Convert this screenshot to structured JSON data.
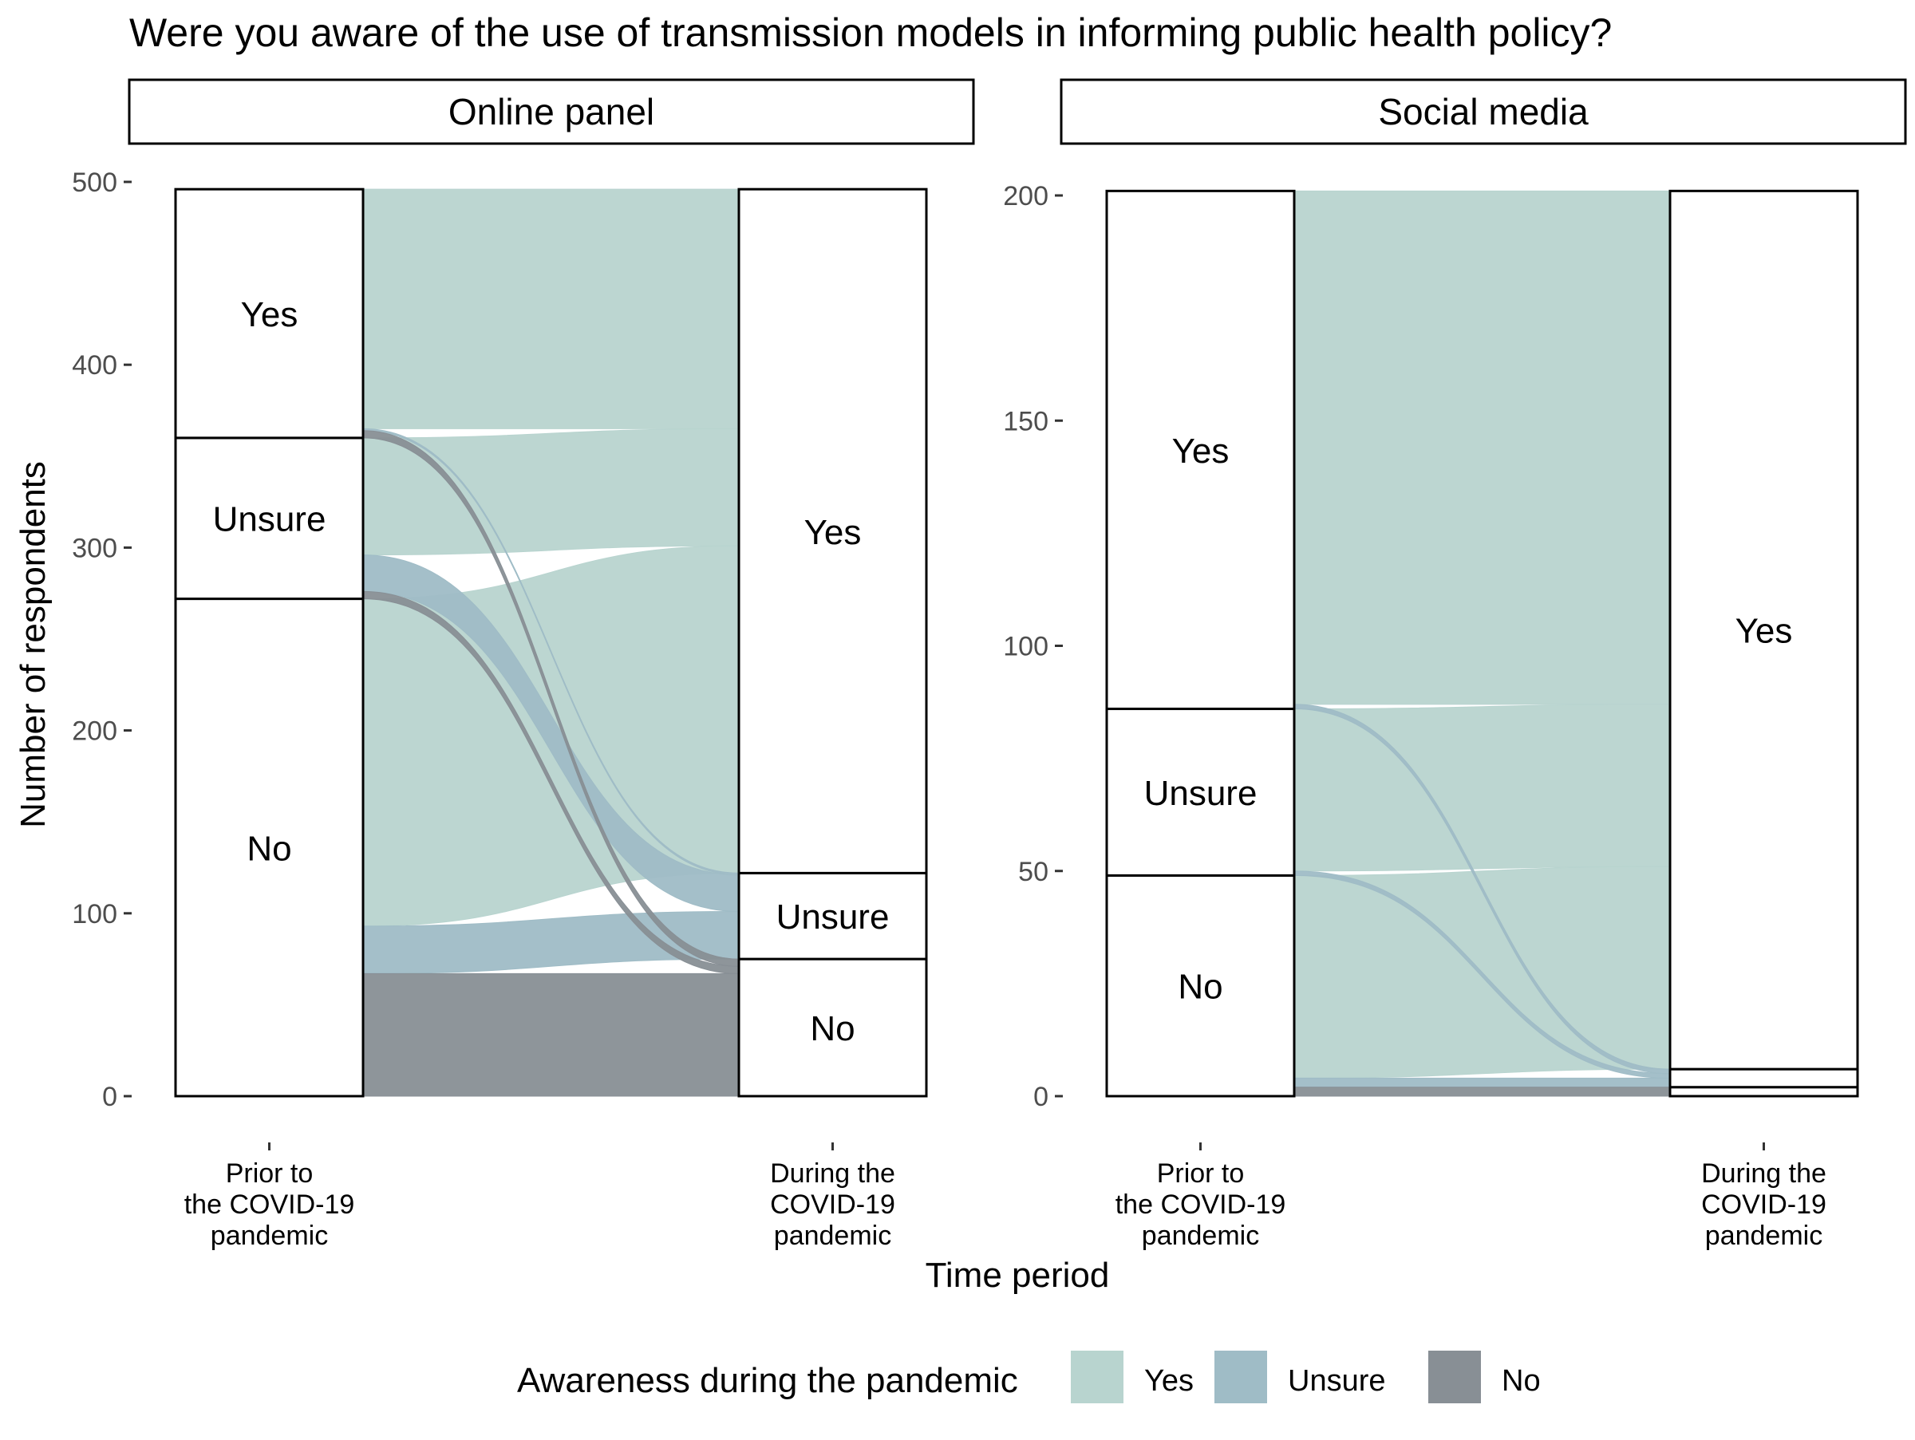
{
  "chart_data": {
    "type": "alluvial",
    "title": "Were you aware of the use of transmission models in informing public health policy?",
    "xlabel": "Time period",
    "ylabel": "Number of respondents",
    "x_categories": [
      "Prior to\nthe COVID-19\npandemic",
      "During the\nCOVID-19\npandemic"
    ],
    "legend": {
      "title": "Awareness during the pandemic",
      "position": "bottom",
      "items": [
        {
          "label": "Yes",
          "color": "#b8d4cf"
        },
        {
          "label": "Unsure",
          "color": "#9fbcc6"
        },
        {
          "label": "No",
          "color": "#888f95"
        }
      ]
    },
    "panels": [
      {
        "name": "Online panel",
        "ylim": [
          0,
          500
        ],
        "yticks": [
          0,
          100,
          200,
          300,
          400,
          500
        ],
        "prior": [
          {
            "label": "No",
            "value": 272
          },
          {
            "label": "Unsure",
            "value": 88
          },
          {
            "label": "Yes",
            "value": 136
          }
        ],
        "during": [
          {
            "label": "No",
            "value": 75
          },
          {
            "label": "Unsure",
            "value": 47
          },
          {
            "label": "Yes",
            "value": 374
          }
        ],
        "flows": [
          {
            "from": "No",
            "to": "No",
            "value": 67
          },
          {
            "from": "No",
            "to": "Unsure",
            "value": 26
          },
          {
            "from": "No",
            "to": "Yes",
            "value": 179
          },
          {
            "from": "Unsure",
            "to": "No",
            "value": 4
          },
          {
            "from": "Unsure",
            "to": "Unsure",
            "value": 20
          },
          {
            "from": "Unsure",
            "to": "Yes",
            "value": 64
          },
          {
            "from": "Yes",
            "to": "No",
            "value": 4
          },
          {
            "from": "Yes",
            "to": "Unsure",
            "value": 1
          },
          {
            "from": "Yes",
            "to": "Yes",
            "value": 131
          }
        ]
      },
      {
        "name": "Social media",
        "ylim": [
          0,
          200
        ],
        "yticks": [
          0,
          50,
          100,
          150,
          200
        ],
        "prior": [
          {
            "label": "No",
            "value": 49
          },
          {
            "label": "Unsure",
            "value": 37
          },
          {
            "label": "Yes",
            "value": 115
          }
        ],
        "during": [
          {
            "label": "No",
            "value": 2
          },
          {
            "label": "Unsure",
            "value": 4
          },
          {
            "label": "Yes",
            "value": 195
          }
        ],
        "flows": [
          {
            "from": "No",
            "to": "No",
            "value": 2
          },
          {
            "from": "No",
            "to": "Unsure",
            "value": 2
          },
          {
            "from": "No",
            "to": "Yes",
            "value": 45
          },
          {
            "from": "Unsure",
            "to": "Unsure",
            "value": 1
          },
          {
            "from": "Unsure",
            "to": "Yes",
            "value": 36
          },
          {
            "from": "Yes",
            "to": "Unsure",
            "value": 1
          },
          {
            "from": "Yes",
            "to": "Yes",
            "value": 114
          }
        ]
      }
    ]
  }
}
